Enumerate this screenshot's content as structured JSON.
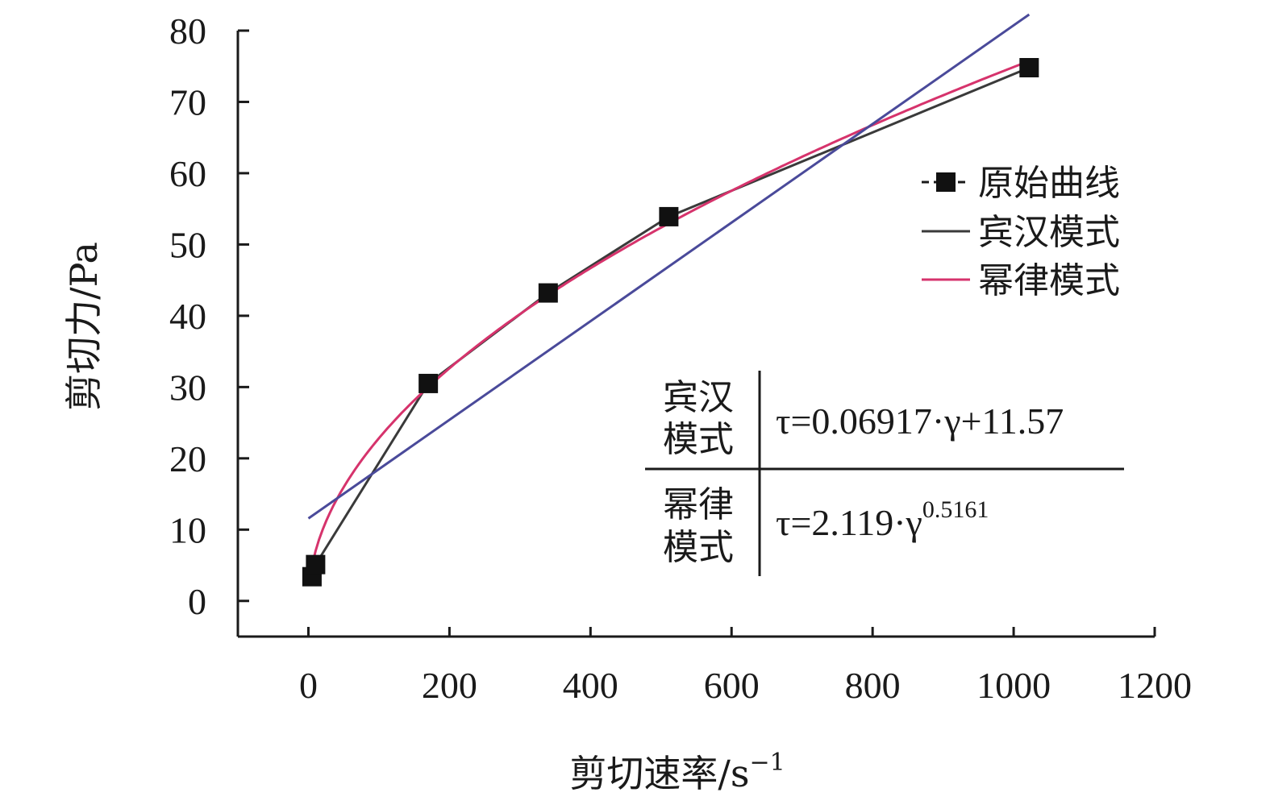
{
  "chart_data": {
    "type": "line",
    "xlabel": "剪切速率/s",
    "xlabel_sup": "−1",
    "ylabel": "剪切力/Pa",
    "xlim": [
      -100,
      1200
    ],
    "ylim": [
      -5,
      80
    ],
    "xticks": [
      0,
      200,
      400,
      600,
      800,
      1000,
      1200
    ],
    "yticks": [
      0,
      10,
      20,
      30,
      40,
      50,
      60,
      70,
      80
    ],
    "grid": false,
    "legend_position": "right",
    "series": [
      {
        "name": "原始曲线",
        "color": "#1a1a1a",
        "marker": "square",
        "x": [
          5.1,
          10.2,
          170,
          340,
          511,
          1022
        ],
        "y": [
          3.4,
          5.1,
          30.5,
          43.2,
          53.9,
          74.8
        ]
      },
      {
        "name": "宾汉模式",
        "color": "#3a3a3a",
        "marker": "none",
        "x": [
          5.1,
          10.2,
          170,
          340,
          511,
          1022
        ],
        "y": [
          3.4,
          5.1,
          30.5,
          43.2,
          53.9,
          74.8
        ]
      },
      {
        "name": "幂律模式",
        "color": "#d6336c",
        "marker": "none",
        "model": "power",
        "k": 2.119,
        "n": 0.5161,
        "x_range": [
          5,
          1022
        ]
      },
      {
        "name": "",
        "color": "#4a4a9a",
        "marker": "none",
        "model": "linear",
        "slope": 0.06917,
        "intercept": 11.57,
        "x_range": [
          0,
          1022
        ]
      }
    ],
    "table": {
      "rows": [
        {
          "label_line1": "宾汉",
          "label_line2": "模式",
          "formula_main": "τ=0.06917·γ+11.57",
          "formula_sup": ""
        },
        {
          "label_line1": "幂律",
          "label_line2": "模式",
          "formula_main": "τ=2.119·γ",
          "formula_sup": "0.5161"
        }
      ]
    }
  }
}
